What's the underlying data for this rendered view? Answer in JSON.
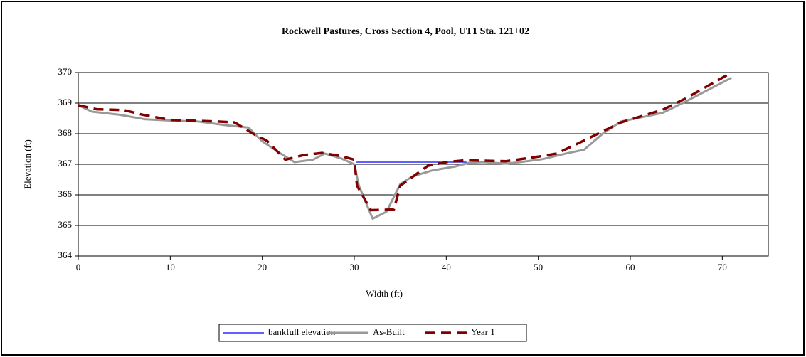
{
  "chart_data": {
    "type": "line",
    "title": "Rockwell Pastures, Cross Section 4, Pool, UT1 Sta. 121+02",
    "xlabel": "Width (ft)",
    "ylabel": "Elevation (ft)",
    "xlim": [
      0,
      75
    ],
    "xticks": [
      0,
      10,
      20,
      30,
      40,
      50,
      60,
      70
    ],
    "ylim": [
      364,
      370
    ],
    "yticks": [
      364,
      365,
      366,
      367,
      368,
      369,
      370
    ],
    "grid": true,
    "legend": "bottom",
    "series": [
      {
        "name": "bankfull elevation",
        "color": "#0000ff",
        "x": [
          30.2,
          42.2
        ],
        "values": [
          367.07,
          367.07
        ]
      },
      {
        "name": "As-Built",
        "color": "#999999",
        "x": [
          0,
          1.5,
          4.5,
          7.3,
          10,
          13,
          16,
          18.5,
          20,
          22,
          23.5,
          25.5,
          26.8,
          28.5,
          30,
          30.5,
          32,
          33.5,
          35,
          36.3,
          38.5,
          41,
          42.5,
          44,
          46.5,
          48,
          50.5,
          53,
          55,
          57,
          59,
          63.5,
          66,
          71
        ],
        "values": [
          368.93,
          368.72,
          368.62,
          368.47,
          368.43,
          368.4,
          368.28,
          368.2,
          367.75,
          367.35,
          367.07,
          367.15,
          367.35,
          367.2,
          367.0,
          366.3,
          365.22,
          365.45,
          366.35,
          366.6,
          366.8,
          366.93,
          367.05,
          367.07,
          367.02,
          367.07,
          367.17,
          367.35,
          367.48,
          368.0,
          368.4,
          368.68,
          369.05,
          369.83
        ]
      },
      {
        "name": "Year 1",
        "color": "#800000",
        "x": [
          0,
          2,
          5,
          7,
          10,
          13,
          15,
          17,
          19,
          20.5,
          22.5,
          24.5,
          26.5,
          28.5,
          30,
          30.3,
          31.8,
          34.3,
          35,
          38,
          40,
          42,
          46.5,
          50,
          52,
          55,
          59,
          63.5,
          66,
          71
        ],
        "values": [
          368.93,
          368.8,
          368.77,
          368.62,
          368.45,
          368.42,
          368.4,
          368.37,
          368.0,
          367.77,
          367.15,
          367.3,
          367.37,
          367.27,
          367.15,
          366.3,
          365.5,
          365.52,
          366.3,
          366.95,
          367.07,
          367.13,
          367.1,
          367.25,
          367.35,
          367.78,
          368.37,
          368.78,
          369.15,
          370.0
        ]
      }
    ]
  }
}
